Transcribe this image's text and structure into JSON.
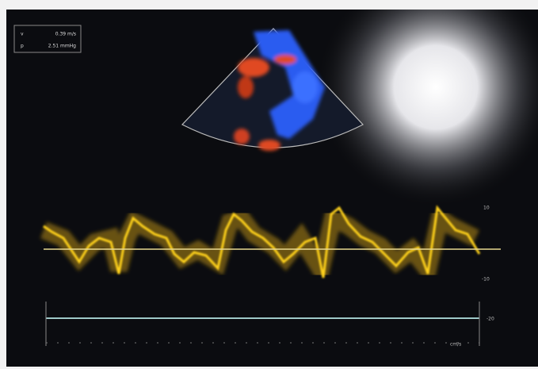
{
  "overlay": {
    "rows": [
      {
        "symbol": "v",
        "value": "0.39 m/s"
      },
      {
        "symbol": "p",
        "value": "2.51 mmHg"
      }
    ]
  },
  "scale_labels": [
    "10",
    "-10",
    "-20"
  ],
  "time_unit": "cm/s"
}
